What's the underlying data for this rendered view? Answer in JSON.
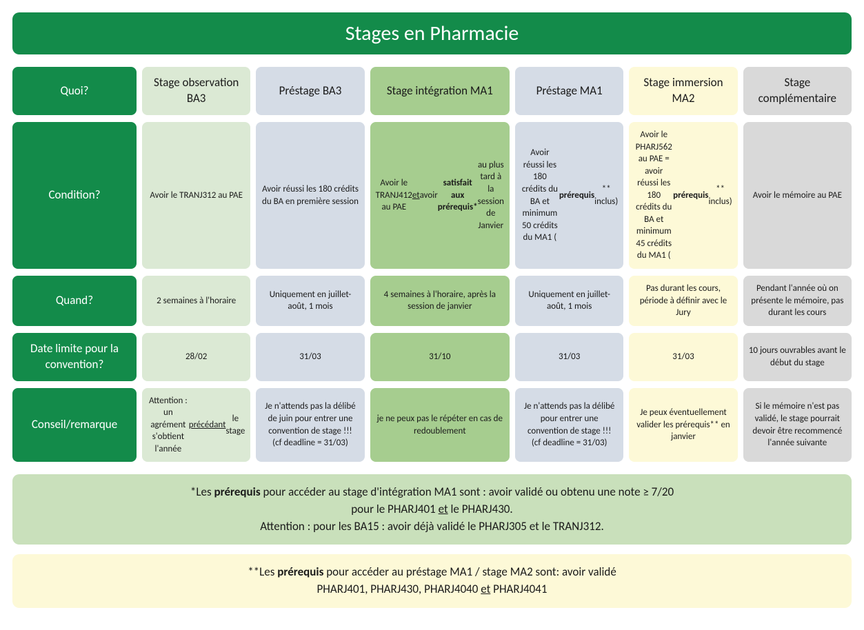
{
  "title": "Stages en Pharmacie",
  "colors": {
    "header_green": "#138b4a",
    "col1": "#dbe9d4",
    "col2": "#d5dce6",
    "col3": "#a6cd8f",
    "col4": "#d5dce6",
    "col5": "#fdf9d7",
    "col6": "#d9d9d9",
    "footnote1_bg": "#c9e0bb",
    "footnote2_bg": "#fdf9d7"
  },
  "row_labels": [
    "Quoi?",
    "Condition?",
    "Quand?",
    "Date limite pour la convention?",
    "Conseil/remarque"
  ],
  "columns": [
    {
      "header": "Stage observation BA3",
      "bg": "#dbe9d4",
      "cells": [
        "Avoir le TRANJ312 au PAE",
        "2 semaines à l'horaire",
        "28/02",
        "Attention : un agrément s'obtient l'année <span class='underline'>précédant</span> le stage"
      ]
    },
    {
      "header": "Préstage BA3",
      "bg": "#d5dce6",
      "cells": [
        "Avoir réussi les 180 crédits du BA en première session",
        "Uniquement en juillet-août, 1 mois",
        "31/03",
        "Je n'attends pas la délibé de juin pour entrer une convention de stage !!!<br>(cf deadline = 31/03)"
      ]
    },
    {
      "header": "Stage intégration MA1",
      "bg": "#a6cd8f",
      "cells": [
        "Avoir le TRANJ412 au PAE <span class='underline'>et</span> avoir <b>satisfait aux prérequis*</b> au plus tard à la session de Janvier",
        "4 semaines à l'horaire, après la session de janvier",
        "31/10",
        "je ne peux pas le répéter en cas de redoublement"
      ]
    },
    {
      "header": "Préstage MA1",
      "bg": "#d5dce6",
      "cells": [
        "Avoir réussi les 180 crédits du BA et minimum 50 crédits du MA1 (<b>prérequis</b>** inclus)",
        "Uniquement en juillet-août, 1 mois",
        "31/03",
        "Je n'attends pas la délibé pour entrer une convention de stage !!!<br>(cf deadline = 31/03)"
      ]
    },
    {
      "header": "Stage immersion MA2",
      "bg": "#fdf9d7",
      "cells": [
        "Avoir le PHARJ562 au PAE = avoir réussi les 180 crédits du BA et minimum 45 crédits du MA1 (<b>prérequis</b>** inclus)",
        "Pas durant les cours, période à définir avec le Jury",
        "31/03",
        "Je peux éventuellement valider les prérequis** en janvier"
      ]
    },
    {
      "header": "Stage complémentaire",
      "bg": "#d9d9d9",
      "cells": [
        "Avoir le mémoire au PAE",
        "Pendant l'année où on présente le mémoire, pas durant les cours",
        "10 jours ouvrables avant le début du stage",
        "Si le mémoire n'est pas validé, le stage pourrait devoir être recommencé l'année suivante"
      ]
    }
  ],
  "footnotes": [
    {
      "bg": "#c9e0bb",
      "html": "*Les <b>prérequis</b> pour accéder au stage d'intégration MA1 sont : avoir validé ou obtenu une note ≥ 7/20<br>pour le PHARJ401 <span class='underline'>et</span> le PHARJ430.<br>Attention : pour les BA15 : avoir déjà validé le PHARJ305 et le TRANJ312."
    },
    {
      "bg": "#fdf9d7",
      "html": "**Les <b>prérequis</b> pour accéder au préstage MA1 / stage MA2 sont: avoir validé<br>PHARJ401, PHARJ430, PHARJ4040 <span class='underline'>et</span> PHARJ4041"
    }
  ]
}
